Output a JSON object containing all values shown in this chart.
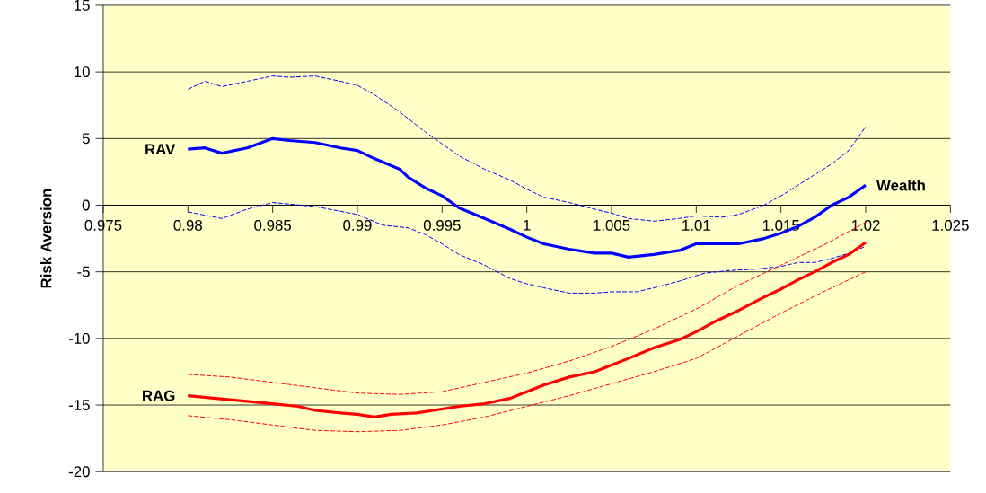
{
  "chart_data": {
    "type": "line",
    "xlabel": "Wealth",
    "ylabel": "Risk Aversion",
    "xlim": [
      0.975,
      1.025
    ],
    "xticks": [
      0.975,
      0.98,
      0.985,
      0.99,
      0.995,
      1,
      1.005,
      1.01,
      1.015,
      1.02,
      1.025
    ],
    "ylim": [
      -20,
      15
    ],
    "yticks": [
      -20,
      -15,
      -10,
      -5,
      0,
      5,
      10,
      15
    ],
    "grid": "y",
    "legend": false,
    "marker": "none",
    "series": [
      {
        "name": "RAV",
        "color": "#0000ff",
        "line_style": "solid",
        "x": [
          0.98,
          0.981,
          0.982,
          0.9835,
          0.985,
          0.986,
          0.9875,
          0.989,
          0.99,
          0.991,
          0.9925,
          0.993,
          0.994,
          0.995,
          0.996,
          0.9975,
          0.999,
          1.0,
          1.001,
          1.0025,
          1.004,
          1.005,
          1.006,
          1.0075,
          1.009,
          1.01,
          1.0125,
          1.014,
          1.015,
          1.016,
          1.017,
          1.018,
          1.019,
          1.02
        ],
        "values": [
          4.2,
          4.3,
          3.9,
          4.3,
          5.0,
          4.85,
          4.7,
          4.3,
          4.1,
          3.5,
          2.7,
          2.1,
          1.3,
          0.7,
          -0.2,
          -1.0,
          -1.8,
          -2.4,
          -2.9,
          -3.3,
          -3.6,
          -3.6,
          -3.9,
          -3.7,
          -3.4,
          -2.9,
          -2.9,
          -2.5,
          -2.1,
          -1.6,
          -0.9,
          0.0,
          0.6,
          1.5
        ]
      },
      {
        "color": "#0000ff",
        "line_style": "dashed",
        "x": [
          0.98,
          0.981,
          0.982,
          0.9835,
          0.985,
          0.986,
          0.9875,
          0.989,
          0.99,
          0.991,
          0.9925,
          0.994,
          0.995,
          0.996,
          0.9975,
          0.999,
          1.0,
          1.001,
          1.0025,
          1.004,
          1.005,
          1.006,
          1.0075,
          1.009,
          1.01,
          1.0115,
          1.0125,
          1.014,
          1.015,
          1.0165,
          1.018,
          1.019,
          1.02
        ],
        "values": [
          8.7,
          9.3,
          8.9,
          9.3,
          9.7,
          9.6,
          9.7,
          9.3,
          9.0,
          8.3,
          7.0,
          5.5,
          4.6,
          3.7,
          2.7,
          1.9,
          1.2,
          0.6,
          0.2,
          -0.3,
          -0.6,
          -1.0,
          -1.2,
          -1.0,
          -0.8,
          -0.9,
          -0.7,
          0.0,
          0.7,
          1.9,
          3.1,
          4.1,
          5.9
        ]
      },
      {
        "color": "#0000ff",
        "line_style": "dashed",
        "x": [
          0.98,
          0.982,
          0.9835,
          0.985,
          0.9875,
          0.99,
          0.9915,
          0.993,
          0.994,
          0.995,
          0.996,
          0.9975,
          0.999,
          1.0,
          1.001,
          1.0025,
          1.004,
          1.005,
          1.0065,
          1.0075,
          1.009,
          1.0105,
          1.012,
          1.0135,
          1.015,
          1.016,
          1.017,
          1.018,
          1.019,
          1.02
        ],
        "values": [
          -0.5,
          -1.0,
          -0.3,
          0.2,
          -0.1,
          -0.7,
          -1.5,
          -1.7,
          -2.2,
          -2.9,
          -3.7,
          -4.5,
          -5.5,
          -5.9,
          -6.2,
          -6.6,
          -6.6,
          -6.5,
          -6.5,
          -6.2,
          -5.7,
          -5.1,
          -4.9,
          -4.8,
          -4.6,
          -4.3,
          -4.3,
          -4.0,
          -3.6,
          -3.1
        ]
      },
      {
        "name": "RAG",
        "color": "#ff0000",
        "line_style": "solid",
        "x": [
          0.98,
          0.9825,
          0.985,
          0.9865,
          0.9875,
          0.989,
          0.99,
          0.991,
          0.992,
          0.9935,
          0.995,
          0.996,
          0.9975,
          0.999,
          1.0,
          1.001,
          1.0025,
          1.004,
          1.005,
          1.006,
          1.0075,
          1.009,
          1.01,
          1.011,
          1.0125,
          1.014,
          1.015,
          1.016,
          1.017,
          1.018,
          1.019,
          1.02
        ],
        "values": [
          -14.3,
          -14.6,
          -14.9,
          -15.1,
          -15.4,
          -15.6,
          -15.7,
          -15.9,
          -15.7,
          -15.6,
          -15.3,
          -15.1,
          -14.9,
          -14.5,
          -14.0,
          -13.5,
          -12.9,
          -12.5,
          -12.0,
          -11.5,
          -10.7,
          -10.1,
          -9.5,
          -8.8,
          -7.9,
          -6.9,
          -6.3,
          -5.6,
          -5.0,
          -4.3,
          -3.7,
          -2.8
        ]
      },
      {
        "color": "#ff0000",
        "line_style": "dashed",
        "x": [
          0.98,
          0.9825,
          0.985,
          0.9875,
          0.99,
          0.9925,
          0.995,
          0.9975,
          1.0,
          1.0025,
          1.005,
          1.0075,
          1.01,
          1.0125,
          1.015,
          1.0175,
          1.02
        ],
        "values": [
          -12.7,
          -12.9,
          -13.3,
          -13.7,
          -14.1,
          -14.2,
          -14.0,
          -13.3,
          -12.6,
          -11.7,
          -10.6,
          -9.3,
          -7.8,
          -6.0,
          -4.5,
          -3.0,
          -1.3
        ]
      },
      {
        "color": "#ff0000",
        "line_style": "dashed",
        "x": [
          0.98,
          0.9825,
          0.985,
          0.9875,
          0.99,
          0.9925,
          0.995,
          0.9975,
          1.0,
          1.0025,
          1.005,
          1.0075,
          1.01,
          1.0125,
          1.015,
          1.0175,
          1.02
        ],
        "values": [
          -15.8,
          -16.1,
          -16.5,
          -16.9,
          -17.0,
          -16.9,
          -16.5,
          -15.9,
          -15.1,
          -14.3,
          -13.4,
          -12.5,
          -11.5,
          -9.8,
          -8.1,
          -6.5,
          -5.0
        ]
      }
    ]
  }
}
